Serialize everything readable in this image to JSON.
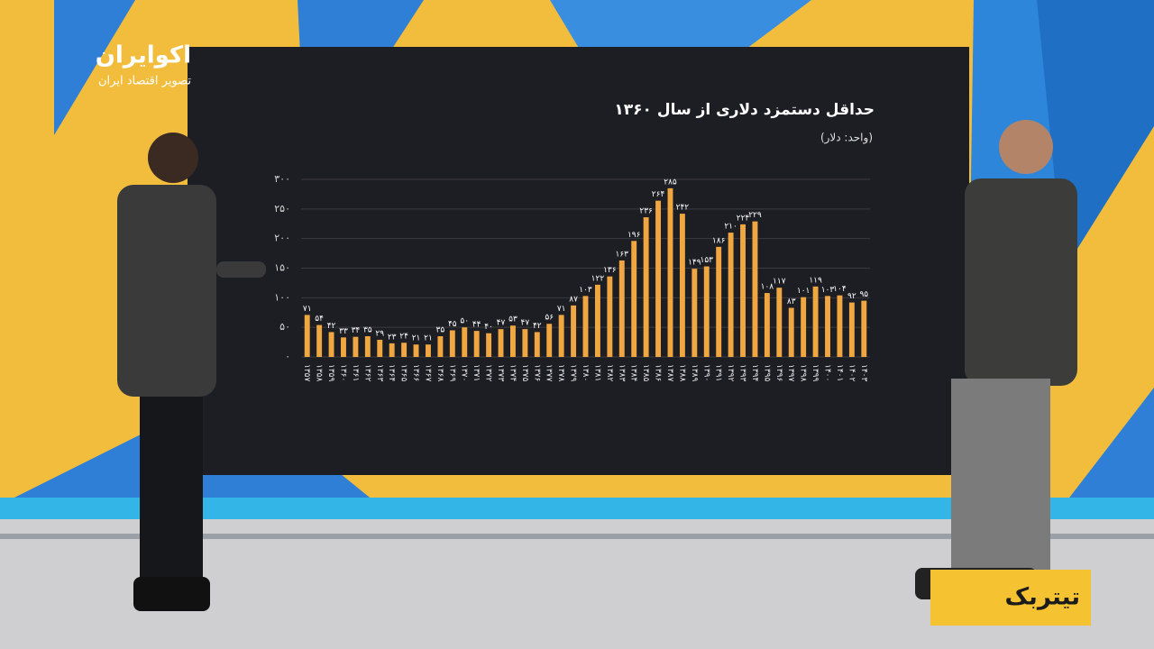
{
  "logo": {
    "name": "اکوایران",
    "tagline": "تصویر اقتصاد ایران"
  },
  "badge": "تیتربک",
  "chart_data": {
    "type": "bar",
    "title": "حداقل دستمزد دلاری از سال ۱۳۶۰",
    "subtitle": "(واحد: دلار)",
    "categories": [
      "۱۳۵۷",
      "۱۳۵۸",
      "۱۳۵۹",
      "۱۳۶۰",
      "۱۳۶۱",
      "۱۳۶۲",
      "۱۳۶۳",
      "۱۳۶۴",
      "۱۳۶۵",
      "۱۳۶۶",
      "۱۳۶۷",
      "۱۳۶۸",
      "۱۳۶۹",
      "۱۳۷۰",
      "۱۳۷۱",
      "۱۳۷۲",
      "۱۳۷۳",
      "۱۳۷۴",
      "۱۳۷۵",
      "۱۳۷۶",
      "۱۳۷۷",
      "۱۳۷۸",
      "۱۳۷۹",
      "۱۳۸۰",
      "۱۳۸۱",
      "۱۳۸۲",
      "۱۳۸۳",
      "۱۳۸۴",
      "۱۳۸۵",
      "۱۳۸۶",
      "۱۳۸۷",
      "۱۳۸۸",
      "۱۳۸۹",
      "۱۳۹۰",
      "۱۳۹۱",
      "۱۳۹۲",
      "۱۳۹۳",
      "۱۳۹۴",
      "۱۳۹۵",
      "۱۳۹۶",
      "۱۳۹۷",
      "۱۳۹۸",
      "۱۳۹۹",
      "۱۴۰۰",
      "۱۴۰۱",
      "۱۴۰۲",
      "۱۴۰۳"
    ],
    "values": [
      71,
      54,
      42,
      33,
      34,
      35,
      29,
      23,
      24,
      21,
      21,
      35,
      45,
      50,
      44,
      40,
      47,
      53,
      47,
      42,
      56,
      71,
      87,
      103,
      122,
      136,
      163,
      196,
      236,
      264,
      285,
      242,
      149,
      153,
      186,
      210,
      224,
      229,
      108,
      117,
      83,
      101,
      119,
      103,
      104,
      92,
      95
    ],
    "value_labels": [
      "۷۱",
      "۵۴",
      "۴۲",
      "۳۳",
      "۳۴",
      "۳۵",
      "۲۹",
      "۲۳",
      "۲۴",
      "۲۱",
      "۲۱",
      "۳۵",
      "۴۵",
      "۵۰",
      "۴۴",
      "۴۰",
      "۴۷",
      "۵۳",
      "۴۷",
      "۴۲",
      "۵۶",
      "۷۱",
      "۸۷",
      "۱۰۳",
      "۱۲۲",
      "۱۳۶",
      "۱۶۳",
      "۱۹۶",
      "۲۳۶",
      "۲۶۴",
      "۲۸۵",
      "۲۴۲",
      "۱۴۹",
      "۱۵۳",
      "۱۸۶",
      "۲۱۰",
      "۲۲۴",
      "۲۲۹",
      "۱۰۸",
      "۱۱۷",
      "۸۳",
      "۱۰۱",
      "۱۱۹",
      "۱۰۳",
      "۱۰۴",
      "۹۲",
      "۹۵"
    ],
    "color": "#f0a641",
    "ylim": [
      0,
      300
    ],
    "yticks": [
      {
        "value": 0,
        "label": "۰"
      },
      {
        "value": 50,
        "label": "۵۰"
      },
      {
        "value": 100,
        "label": "۱۰۰"
      },
      {
        "value": 150,
        "label": "۱۵۰"
      },
      {
        "value": 200,
        "label": "۲۰۰"
      },
      {
        "value": 250,
        "label": "۲۵۰"
      },
      {
        "value": 300,
        "label": "۳۰۰"
      }
    ],
    "grid": true
  }
}
